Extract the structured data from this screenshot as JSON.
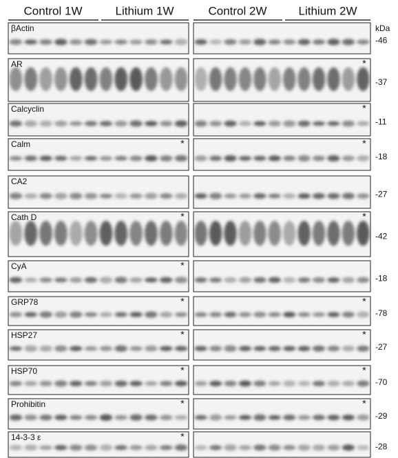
{
  "header": {
    "groups": [
      "Control 1W",
      "Lithium 1W",
      "Control 2W",
      "Lithium 2W"
    ],
    "unit": "kDa"
  },
  "rows": [
    {
      "label": "βActin",
      "kda": "-46"
    },
    {
      "label": "AR",
      "right_mark": "*",
      "kda": "-37"
    },
    {
      "label": "Calcyclin",
      "right_mark": "*",
      "kda": "-11"
    },
    {
      "label": "Calm",
      "left_mark": "*",
      "right_mark": "*",
      "kda": "-18"
    },
    {
      "label": "CA2",
      "kda": "-27"
    },
    {
      "label": "Cath D",
      "left_mark": "*",
      "right_mark": "*",
      "kda": "-42"
    },
    {
      "label": "CyA",
      "left_mark": "*",
      "kda": "-18"
    },
    {
      "label": "GRP78",
      "left_mark": "*",
      "right_mark": "*",
      "kda": "-78"
    },
    {
      "label": "HSP27",
      "left_mark": "*",
      "right_mark": "*",
      "kda": "-27"
    },
    {
      "label": "HSP70",
      "left_mark": "*",
      "right_mark": "*",
      "kda": "-70"
    },
    {
      "label": "Prohibitin",
      "left_mark": "*",
      "right_mark": "*",
      "kda": "-29"
    },
    {
      "label": "14-3-3 ε",
      "left_mark": "*",
      "kda": "-28"
    }
  ]
}
